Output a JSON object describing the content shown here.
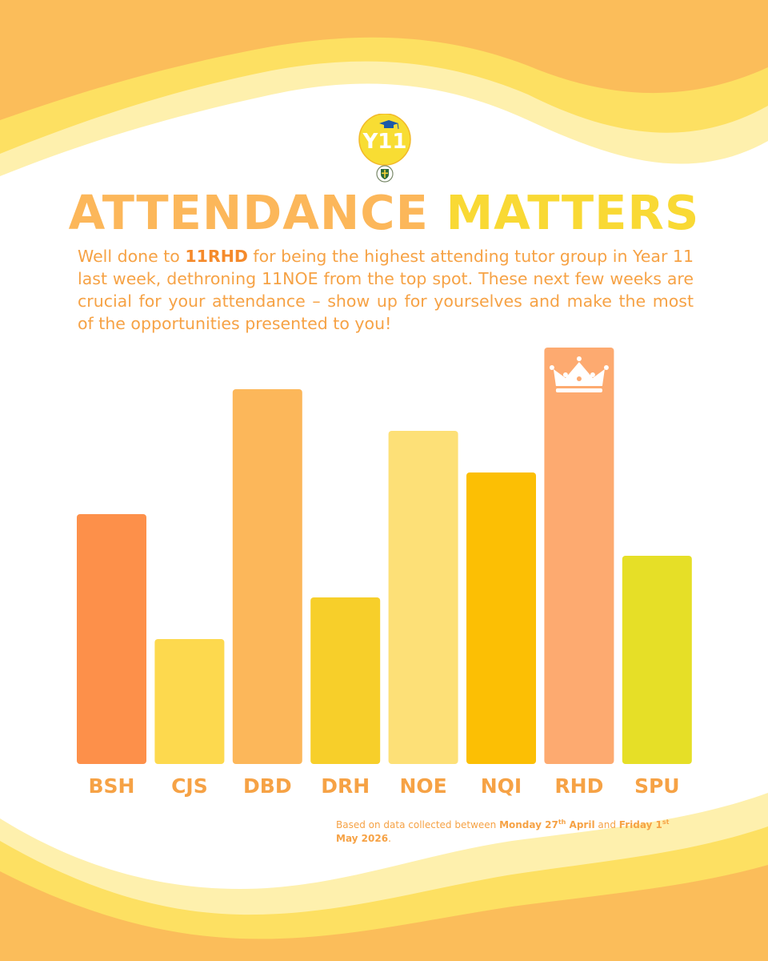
{
  "logo": {
    "badge_text": "Y11",
    "icon": "graduation-cap-icon",
    "crest_icon": "school-crest-icon"
  },
  "title": {
    "part1": "ATTENDANCE",
    "part2": "MATTERS"
  },
  "intro": {
    "lead": "Well done to ",
    "highlight": "11RHD",
    "rest": " for being the highest attending tutor group in Year 11 last week, dethroning 11NOE from the top spot. These next few weeks are crucial for your attendance –  show up for yourselves and make the most of the opportunities presented to you!"
  },
  "chart_data": {
    "type": "bar",
    "categories": [
      "BSH",
      "CJS",
      "DBD",
      "DRH",
      "NOE",
      "NQI",
      "RHD",
      "SPU"
    ],
    "values": [
      6,
      3,
      9,
      4,
      8,
      7,
      10,
      5
    ],
    "ylim": [
      0,
      10
    ],
    "grid": false,
    "legend": "none",
    "bar_colors": [
      "#fd904a",
      "#fdd94e",
      "#fcb75a",
      "#f7cf2a",
      "#fde077",
      "#fcbf04",
      "#fdaa70",
      "#e6df27"
    ],
    "top_marker": {
      "category": "RHD",
      "icon": "crown-icon"
    }
  },
  "footnote": {
    "prefix": "Based on data collected between ",
    "start_day": "Monday 27",
    "start_sup": "th",
    "start_month": " April",
    "middle": " and ",
    "end_day": "Friday 1",
    "end_sup": "st",
    "end_month": " May 2026",
    "suffix": "."
  },
  "colors": {
    "background": "#ffffff",
    "wave_dark": "#fbbd5a",
    "wave_mid": "#fde062",
    "wave_light": "#fef0ad",
    "title_orange": "#fcb75a",
    "title_yellow": "#f9d934",
    "text_orange": "#f6a245"
  }
}
